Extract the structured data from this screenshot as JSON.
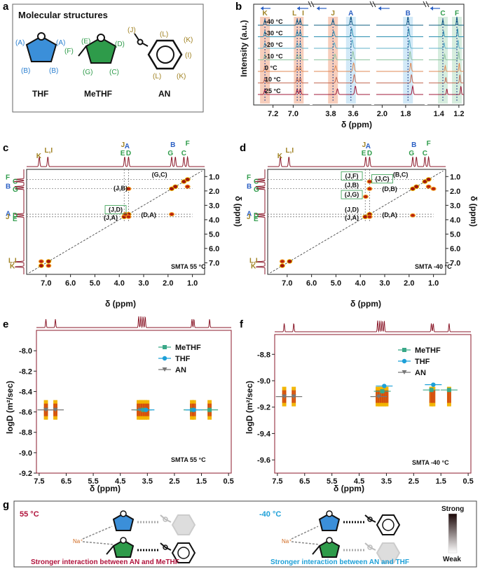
{
  "panels": {
    "a": "a",
    "b": "b",
    "c": "c",
    "d": "d",
    "e": "e",
    "f": "f",
    "g": "g"
  },
  "colors": {
    "wine": "#8b1a2b",
    "blue": "#2a5fc4",
    "green": "#2e9b4a",
    "gold": "#a08222",
    "orange": "#f4b9a0",
    "cyanband": "#bfe0f3",
    "greenband": "#c4e6d0",
    "cyan": "#1da0d8",
    "magenta": "#b0123b"
  },
  "panel_a": {
    "title": "Molecular structures",
    "molecules": [
      {
        "name": "THF",
        "labels": [
          "(A)",
          "(A)",
          "(B)",
          "(B)"
        ]
      },
      {
        "name": "MeTHF",
        "labels": [
          "(E)",
          "(D)",
          "(F)",
          "(G)",
          "(C)"
        ]
      },
      {
        "name": "AN",
        "labels": [
          "(J)",
          "(L)",
          "(K)",
          "(I)",
          "(L)",
          "(K)"
        ]
      }
    ]
  },
  "chart_data": [
    {
      "panel": "b",
      "type": "line",
      "ylabel": "Intensity (a.u.)",
      "xlabel": "δ (ppm)",
      "temperatures": [
        "-40 °C",
        "-30 °C",
        "-20 °C",
        "-10 °C",
        "0 °C",
        "10 °C",
        "25 °C"
      ],
      "trace_colors": [
        "#0e5f82",
        "#2a8fb0",
        "#5fb0c8",
        "#8fc39f",
        "#e08a55",
        "#c46a55",
        "#a01a3a"
      ],
      "segments": [
        {
          "range": [
            7.35,
            6.85
          ],
          "ticks": [
            "7.2",
            "7.0"
          ],
          "peaks": [
            {
              "label": "K",
              "ppm": 7.28
            },
            {
              "label": "L",
              "ppm": 6.96
            },
            {
              "label": "I",
              "ppm": 6.93
            }
          ]
        },
        {
          "range": [
            3.95,
            3.45
          ],
          "ticks": [
            "3.8",
            "3.6"
          ],
          "peaks": [
            {
              "label": "J",
              "ppm": 3.78
            },
            {
              "label": "A",
              "ppm": 3.62
            }
          ]
        },
        {
          "range": [
            2.05,
            1.65
          ],
          "ticks": [
            "2.0",
            "1.8"
          ],
          "peaks": [
            {
              "label": "B",
              "ppm": 1.78
            }
          ]
        },
        {
          "range": [
            1.5,
            1.15
          ],
          "ticks": [
            "1.4",
            "1.2"
          ],
          "peaks": [
            {
              "label": "C",
              "ppm": 1.36
            },
            {
              "label": "F",
              "ppm": 1.22
            }
          ]
        }
      ]
    },
    {
      "panel": "c",
      "type": "heatmap",
      "title": "SMTA 55 °C",
      "xlabel": "δ (ppm)",
      "ylabel": "δ (ppm)",
      "xticks": [
        "7.0",
        "6.0",
        "5.0",
        "4.0",
        "3.0",
        "2.0",
        "1.0"
      ],
      "yticks": [
        "1.0",
        "2.0",
        "3.0",
        "4.0",
        "5.0",
        "6.0",
        "7.0"
      ],
      "xlim": [
        7.8,
        0.5
      ],
      "ylim": [
        0.5,
        7.8
      ],
      "diagonal": [
        [
          7.2,
          7.2
        ],
        [
          6.9,
          6.9
        ],
        [
          3.8,
          3.8
        ],
        [
          3.62,
          3.62
        ],
        [
          1.85,
          1.85
        ],
        [
          1.7,
          1.7
        ],
        [
          1.35,
          1.35
        ],
        [
          1.2,
          1.2
        ]
      ],
      "cross_peaks": [
        {
          "x": 3.62,
          "y": 1.85
        },
        {
          "x": 3.62,
          "y": 3.8
        },
        {
          "x": 3.75,
          "y": 3.62
        },
        {
          "x": 1.85,
          "y": 3.62
        },
        {
          "x": 1.2,
          "y": 1.7
        },
        {
          "x": 7.2,
          "y": 6.9
        },
        {
          "x": 6.9,
          "y": 7.2
        }
      ],
      "annotations": [
        {
          "text": "(G,C)",
          "color": "#2e9b4a",
          "x": 2.35,
          "y": 1.0,
          "box": false
        },
        {
          "text": "(J,B)",
          "color": "#333",
          "x": 3.95,
          "y": 1.95,
          "box": false
        },
        {
          "text": "(J,D)",
          "color": "#a08222",
          "x": 4.15,
          "y": 3.45,
          "box": true
        },
        {
          "text": "(J,A)",
          "color": "#333",
          "x": 4.35,
          "y": 4.0,
          "box": false
        },
        {
          "text": "(D,A)",
          "color": "#2a5fc4",
          "x": 2.8,
          "y": 3.8,
          "box": false
        }
      ],
      "top_labels": [
        "K",
        "L,I",
        "J",
        "E",
        "A",
        "D",
        "B",
        "G",
        "C",
        "F"
      ],
      "left_labels": [
        "F",
        "C",
        "B",
        "G",
        "A",
        "D",
        "J",
        "E",
        "L,I",
        "K"
      ]
    },
    {
      "panel": "d",
      "type": "heatmap",
      "title": "SMTA -40 °C",
      "xlabel": "δ (ppm)",
      "ylabel": "δ (ppm)",
      "xticks": [
        "7.0",
        "6.0",
        "5.0",
        "4.0",
        "3.0",
        "2.0",
        "1.0"
      ],
      "yticks": [
        "1.0",
        "2.0",
        "3.0",
        "4.0",
        "5.0",
        "6.0",
        "7.0"
      ],
      "xlim": [
        7.8,
        0.5
      ],
      "ylim": [
        0.5,
        7.8
      ],
      "diagonal": [
        [
          7.2,
          7.2
        ],
        [
          6.9,
          6.9
        ],
        [
          3.8,
          3.8
        ],
        [
          3.62,
          3.62
        ],
        [
          1.85,
          1.85
        ],
        [
          1.7,
          1.7
        ],
        [
          1.35,
          1.35
        ],
        [
          1.2,
          1.2
        ]
      ],
      "cross_peaks": [
        {
          "x": 3.62,
          "y": 1.35
        },
        {
          "x": 3.62,
          "y": 1.85
        },
        {
          "x": 3.78,
          "y": 2.4
        },
        {
          "x": 3.62,
          "y": 3.8
        },
        {
          "x": 1.85,
          "y": 3.7
        },
        {
          "x": 1.2,
          "y": 1.7
        },
        {
          "x": 1.0,
          "y": 1.85
        },
        {
          "x": 7.2,
          "y": 6.9
        }
      ],
      "annotations": [
        {
          "text": "(J,F)",
          "color": "#2e9b4a",
          "x": 4.35,
          "y": 1.1,
          "box": true
        },
        {
          "text": "(J,C)",
          "color": "#2e9b4a",
          "x": 3.1,
          "y": 1.3,
          "box": true
        },
        {
          "text": "(B,C)",
          "color": "#2a5fc4",
          "x": 2.35,
          "y": 1.0,
          "box": false
        },
        {
          "text": "(J,B)",
          "color": "#333",
          "x": 4.35,
          "y": 1.75,
          "box": false
        },
        {
          "text": "(D,B)",
          "color": "#2a5fc4",
          "x": 2.8,
          "y": 2.0,
          "box": false
        },
        {
          "text": "(J,G)",
          "color": "#2e9b4a",
          "x": 4.35,
          "y": 2.4,
          "box": true
        },
        {
          "text": "(J,D)",
          "color": "#333",
          "x": 4.35,
          "y": 3.45,
          "box": false
        },
        {
          "text": "(J,A)",
          "color": "#333",
          "x": 4.35,
          "y": 4.0,
          "box": false
        },
        {
          "text": "(D,A)",
          "color": "#2a5fc4",
          "x": 2.8,
          "y": 3.8,
          "box": false
        }
      ],
      "top_labels": [
        "K",
        "L,I",
        "J",
        "E",
        "A",
        "D",
        "B",
        "G",
        "C",
        "F"
      ],
      "left_labels": [
        "F",
        "C",
        "B",
        "G",
        "A",
        "D",
        "J",
        "E",
        "L,I",
        "K"
      ]
    },
    {
      "panel": "e",
      "type": "scatter",
      "title": "SMTA 55 °C",
      "xlabel": "δ (ppm)",
      "ylabel": "logD (m²/sec)",
      "xlim": [
        7.6,
        0.4
      ],
      "ylim": [
        -9.2,
        -7.8
      ],
      "xticks": [
        "7.5",
        "6.5",
        "5.5",
        "4.5",
        "3.5",
        "2.5",
        "1.5",
        "0.5"
      ],
      "yticks": [
        "-9.2",
        "-9.0",
        "-8.8",
        "-8.6",
        "-8.4",
        "-8.2",
        "-8.0"
      ],
      "legend": [
        "MeTHF",
        "THF",
        "AN"
      ],
      "series": [
        {
          "name": "AN",
          "x": [
            7.25,
            6.9,
            3.78
          ],
          "y": [
            -8.58,
            -8.58,
            -8.58
          ]
        },
        {
          "name": "MeTHF",
          "x": [
            3.65,
            1.85,
            1.2
          ],
          "y": [
            -8.58,
            -8.58,
            -8.58
          ]
        },
        {
          "name": "THF",
          "x": [
            3.55,
            1.78
          ],
          "y": [
            -8.58,
            -8.58
          ]
        }
      ]
    },
    {
      "panel": "f",
      "type": "scatter",
      "title": "SMTA -40 °C",
      "xlabel": "δ (ppm)",
      "ylabel": "logD (m²/sec)",
      "xlim": [
        7.6,
        0.4
      ],
      "ylim": [
        -9.7,
        -8.65
      ],
      "xticks": [
        "7.5",
        "6.5",
        "5.5",
        "4.5",
        "3.5",
        "2.5",
        "1.5",
        "0.5"
      ],
      "yticks": [
        "-9.6",
        "-9.4",
        "-9.2",
        "-9.0",
        "-8.8"
      ],
      "legend": [
        "MeTHF",
        "THF",
        "AN"
      ],
      "series": [
        {
          "name": "AN",
          "x": [
            7.25,
            6.9,
            3.78
          ],
          "y": [
            -9.12,
            -9.12,
            -9.12
          ]
        },
        {
          "name": "MeTHF",
          "x": [
            3.65,
            1.85,
            1.2
          ],
          "y": [
            -9.08,
            -9.07,
            -9.07
          ]
        },
        {
          "name": "THF",
          "x": [
            3.58,
            1.78
          ],
          "y": [
            -9.04,
            -9.03
          ]
        }
      ]
    }
  ],
  "panel_g": {
    "left_temp": "55 °C",
    "right_temp": "-40 °C",
    "na": "Na⁺",
    "left_caption": "Stronger interaction between AN and MeTHF",
    "right_caption": "Stronger interaction between AN and THF",
    "scale_top": "Strong",
    "scale_bottom": "Weak"
  }
}
